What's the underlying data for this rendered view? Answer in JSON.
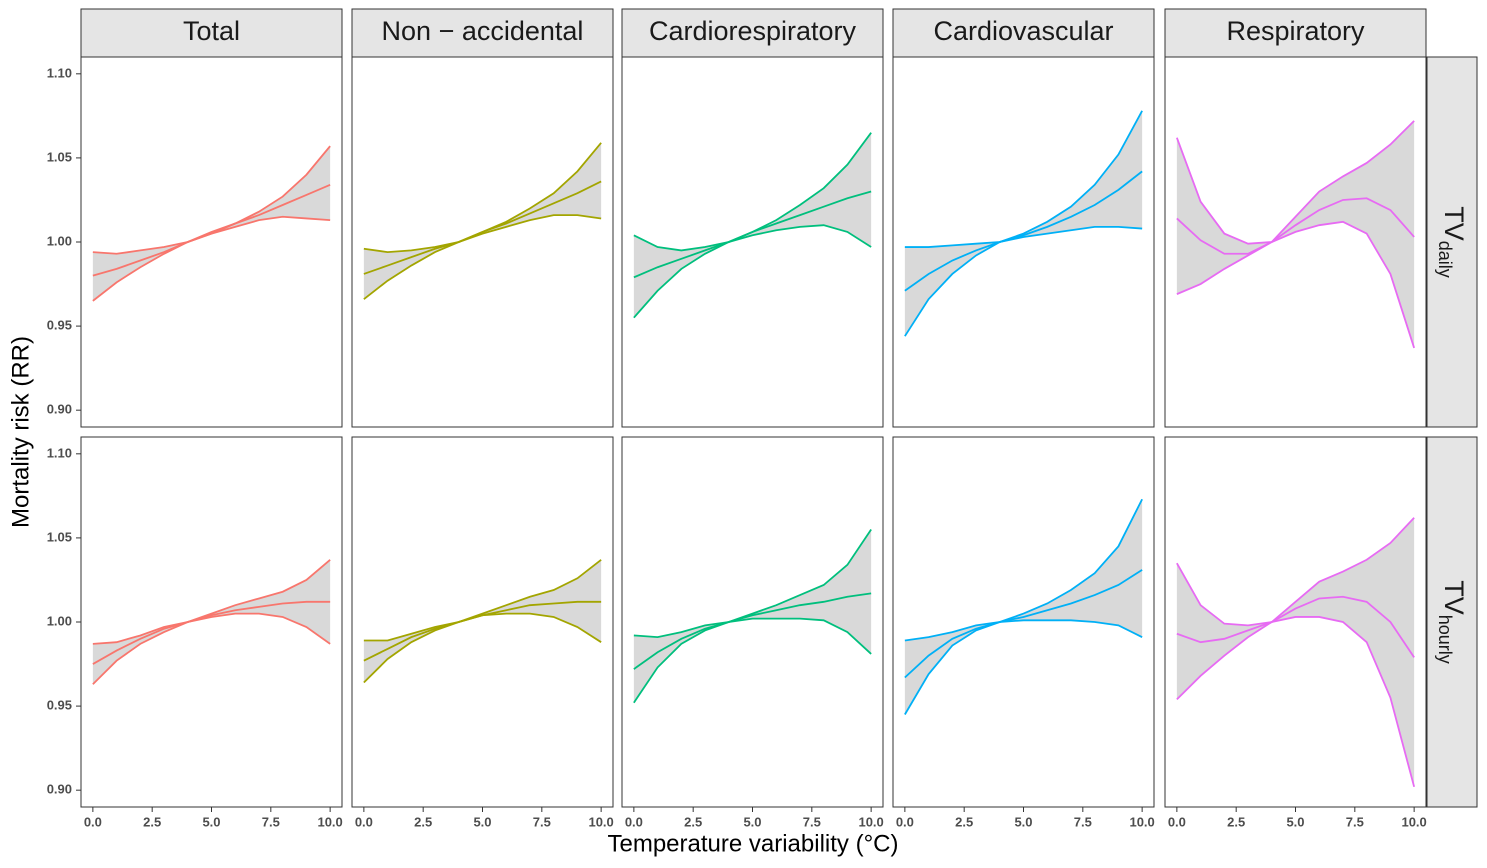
{
  "chart_data": {
    "type": "line",
    "xlabel": "Temperature variability (°C)",
    "ylabel": "Mortality risk (RR)",
    "xlim": [
      -0.5,
      10.5
    ],
    "xticks": [
      {
        "value": 0,
        "label": "0.0"
      },
      {
        "value": 2.5,
        "label": "2.5"
      },
      {
        "value": 5,
        "label": "5.0"
      },
      {
        "value": 7.5,
        "label": "7.5"
      },
      {
        "value": 10,
        "label": "10.0"
      }
    ],
    "ylim": [
      0.89,
      1.11
    ],
    "yticks": [
      {
        "value": 0.9,
        "label": "0.90"
      },
      {
        "value": 0.95,
        "label": "0.95"
      },
      {
        "value": 1,
        "label": "1.00"
      },
      {
        "value": 1.05,
        "label": "1.05"
      },
      {
        "value": 1.1,
        "label": "1.10"
      }
    ],
    "band_color": "#d9d9d9",
    "x": [
      0,
      1,
      2,
      3,
      4,
      5,
      6,
      7,
      8,
      9,
      10
    ],
    "columns": [
      {
        "title": "Total",
        "color": "#F8766D"
      },
      {
        "title": "Non − accidental",
        "color": "#A3A500"
      },
      {
        "title": "Cardiorespiratory",
        "color": "#00BF7D"
      },
      {
        "title": "Cardiovascular",
        "color": "#00B0F6"
      },
      {
        "title": "Respiratory",
        "color": "#E76BF3"
      }
    ],
    "rows": [
      {
        "label": "TV",
        "sub": "daily",
        "panels": [
          {
            "series": [
              {
                "values": [
                  0.98,
                  0.984,
                  0.989,
                  0.994,
                  1.0,
                  1.006,
                  1.011,
                  1.016,
                  1.022,
                  1.028,
                  1.034
                ]
              },
              {
                "values": [
                  0.965,
                  0.976,
                  0.985,
                  0.993,
                  1.0,
                  1.005,
                  1.009,
                  1.013,
                  1.015,
                  1.014,
                  1.013
                ]
              },
              {
                "values": [
                  0.994,
                  0.993,
                  0.995,
                  0.997,
                  1.0,
                  1.005,
                  1.011,
                  1.018,
                  1.027,
                  1.04,
                  1.057
                ]
              }
            ]
          },
          {
            "series": [
              {
                "values": [
                  0.981,
                  0.986,
                  0.991,
                  0.996,
                  1.0,
                  1.006,
                  1.011,
                  1.017,
                  1.023,
                  1.029,
                  1.036
                ]
              },
              {
                "values": [
                  0.966,
                  0.977,
                  0.986,
                  0.994,
                  1.0,
                  1.005,
                  1.009,
                  1.013,
                  1.016,
                  1.016,
                  1.014
                ]
              },
              {
                "values": [
                  0.996,
                  0.994,
                  0.995,
                  0.997,
                  1.0,
                  1.006,
                  1.012,
                  1.02,
                  1.029,
                  1.042,
                  1.059
                ]
              }
            ]
          },
          {
            "series": [
              {
                "values": [
                  0.979,
                  0.985,
                  0.99,
                  0.995,
                  1.0,
                  1.006,
                  1.011,
                  1.016,
                  1.021,
                  1.026,
                  1.03
                ]
              },
              {
                "values": [
                  0.955,
                  0.971,
                  0.984,
                  0.993,
                  1.0,
                  1.004,
                  1.007,
                  1.009,
                  1.01,
                  1.006,
                  0.997
                ]
              },
              {
                "values": [
                  1.004,
                  0.997,
                  0.995,
                  0.997,
                  1.0,
                  1.006,
                  1.013,
                  1.022,
                  1.032,
                  1.046,
                  1.065
                ]
              }
            ]
          },
          {
            "series": [
              {
                "values": [
                  0.971,
                  0.981,
                  0.989,
                  0.995,
                  1.0,
                  1.004,
                  1.009,
                  1.015,
                  1.022,
                  1.031,
                  1.042
                ]
              },
              {
                "values": [
                  0.944,
                  0.966,
                  0.981,
                  0.992,
                  1.0,
                  1.003,
                  1.005,
                  1.007,
                  1.009,
                  1.009,
                  1.008
                ]
              },
              {
                "values": [
                  0.997,
                  0.997,
                  0.998,
                  0.999,
                  1.0,
                  1.005,
                  1.012,
                  1.021,
                  1.034,
                  1.052,
                  1.078
                ]
              }
            ]
          },
          {
            "series": [
              {
                "values": [
                  1.014,
                  1.001,
                  0.993,
                  0.993,
                  1.0,
                  1.01,
                  1.019,
                  1.025,
                  1.026,
                  1.019,
                  1.003
                ]
              },
              {
                "values": [
                  0.969,
                  0.975,
                  0.984,
                  0.992,
                  1.0,
                  1.006,
                  1.01,
                  1.012,
                  1.005,
                  0.981,
                  0.937
                ]
              },
              {
                "values": [
                  1.062,
                  1.024,
                  1.005,
                  0.999,
                  1.0,
                  1.015,
                  1.03,
                  1.039,
                  1.047,
                  1.058,
                  1.072
                ]
              }
            ]
          }
        ]
      },
      {
        "label": "TV",
        "sub": "hourly",
        "panels": [
          {
            "series": [
              {
                "values": [
                  0.975,
                  0.983,
                  0.99,
                  0.996,
                  1.0,
                  1.004,
                  1.007,
                  1.009,
                  1.011,
                  1.012,
                  1.012
                ]
              },
              {
                "values": [
                  0.963,
                  0.977,
                  0.987,
                  0.994,
                  1.0,
                  1.003,
                  1.005,
                  1.005,
                  1.003,
                  0.997,
                  0.987
                ]
              },
              {
                "values": [
                  0.987,
                  0.988,
                  0.992,
                  0.997,
                  1.0,
                  1.005,
                  1.01,
                  1.014,
                  1.018,
                  1.025,
                  1.037
                ]
              }
            ]
          },
          {
            "series": [
              {
                "values": [
                  0.977,
                  0.984,
                  0.991,
                  0.996,
                  1.0,
                  1.004,
                  1.007,
                  1.01,
                  1.011,
                  1.012,
                  1.012
                ]
              },
              {
                "values": [
                  0.964,
                  0.978,
                  0.988,
                  0.995,
                  1.0,
                  1.004,
                  1.005,
                  1.005,
                  1.003,
                  0.997,
                  0.988
                ]
              },
              {
                "values": [
                  0.989,
                  0.989,
                  0.993,
                  0.997,
                  1.0,
                  1.005,
                  1.01,
                  1.015,
                  1.019,
                  1.026,
                  1.037
                ]
              }
            ]
          },
          {
            "series": [
              {
                "values": [
                  0.972,
                  0.982,
                  0.99,
                  0.996,
                  1.0,
                  1.004,
                  1.007,
                  1.01,
                  1.012,
                  1.015,
                  1.017
                ]
              },
              {
                "values": [
                  0.952,
                  0.973,
                  0.987,
                  0.995,
                  1.0,
                  1.002,
                  1.002,
                  1.002,
                  1.001,
                  0.994,
                  0.981
                ]
              },
              {
                "values": [
                  0.992,
                  0.991,
                  0.994,
                  0.998,
                  1.0,
                  1.005,
                  1.01,
                  1.016,
                  1.022,
                  1.034,
                  1.055
                ]
              }
            ]
          },
          {
            "series": [
              {
                "values": [
                  0.967,
                  0.98,
                  0.99,
                  0.996,
                  1.0,
                  1.003,
                  1.007,
                  1.011,
                  1.016,
                  1.022,
                  1.031
                ]
              },
              {
                "values": [
                  0.945,
                  0.969,
                  0.986,
                  0.995,
                  1.0,
                  1.001,
                  1.001,
                  1.001,
                  1.0,
                  0.998,
                  0.991
                ]
              },
              {
                "values": [
                  0.989,
                  0.991,
                  0.994,
                  0.998,
                  1.0,
                  1.005,
                  1.011,
                  1.019,
                  1.029,
                  1.045,
                  1.073
                ]
              }
            ]
          },
          {
            "series": [
              {
                "values": [
                  0.993,
                  0.988,
                  0.99,
                  0.995,
                  1.0,
                  1.008,
                  1.014,
                  1.015,
                  1.012,
                  1.0,
                  0.979
                ]
              },
              {
                "values": [
                  0.954,
                  0.968,
                  0.98,
                  0.991,
                  1.0,
                  1.003,
                  1.003,
                  1.0,
                  0.988,
                  0.955,
                  0.902
                ]
              },
              {
                "values": [
                  1.035,
                  1.01,
                  0.999,
                  0.998,
                  1.0,
                  1.012,
                  1.024,
                  1.03,
                  1.037,
                  1.047,
                  1.062
                ]
              }
            ]
          }
        ]
      }
    ]
  }
}
